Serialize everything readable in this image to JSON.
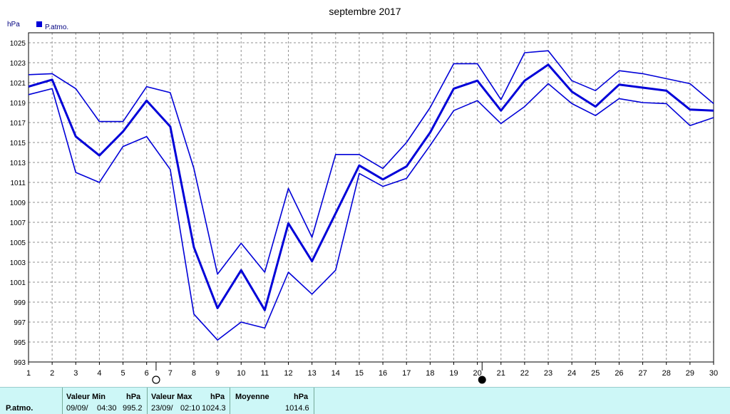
{
  "chart_data": {
    "type": "line",
    "title": "septembre 2017",
    "ylabel": "hPa",
    "legend": "P.atmo.",
    "legend_placement": "top-left",
    "grid": true,
    "ylim": [
      993,
      1026
    ],
    "yticks": [
      993,
      995,
      997,
      999,
      1001,
      1003,
      1005,
      1007,
      1009,
      1011,
      1013,
      1015,
      1017,
      1019,
      1021,
      1023,
      1025
    ],
    "x": [
      1,
      2,
      3,
      4,
      5,
      6,
      7,
      8,
      9,
      10,
      11,
      12,
      13,
      14,
      15,
      16,
      17,
      18,
      19,
      20,
      21,
      22,
      23,
      24,
      25,
      26,
      27,
      28,
      29,
      30
    ],
    "series": [
      {
        "role": "max",
        "values": [
          1021.8,
          1021.9,
          1020.4,
          1017.1,
          1017.1,
          1020.6,
          1020.0,
          1012.4,
          1001.8,
          1004.9,
          1002.0,
          1010.4,
          1005.5,
          1013.8,
          1013.8,
          1012.4,
          1015.0,
          1018.5,
          1022.9,
          1022.9,
          1019.3,
          1024.0,
          1024.2,
          1021.2,
          1020.2,
          1022.2,
          1021.9,
          1021.4,
          1020.9,
          1018.9
        ]
      },
      {
        "role": "mean",
        "values": [
          1020.6,
          1021.3,
          1015.6,
          1013.7,
          1016.1,
          1019.2,
          1016.6,
          1004.5,
          998.4,
          1002.2,
          998.2,
          1006.9,
          1003.1,
          1007.9,
          1012.7,
          1011.3,
          1012.6,
          1016.0,
          1020.4,
          1021.2,
          1018.2,
          1021.2,
          1022.8,
          1020.1,
          1018.6,
          1020.8,
          1020.5,
          1020.2,
          1018.3,
          1018.2
        ]
      },
      {
        "role": "min",
        "values": [
          1019.8,
          1020.4,
          1012.0,
          1011.0,
          1014.6,
          1015.6,
          1012.3,
          997.8,
          995.2,
          997.0,
          996.4,
          1002.0,
          999.8,
          1002.2,
          1011.9,
          1010.6,
          1011.4,
          1014.7,
          1018.2,
          1019.2,
          1016.9,
          1018.6,
          1020.9,
          1018.9,
          1017.7,
          1019.4,
          1019.0,
          1018.9,
          1016.7,
          1017.5
        ]
      }
    ],
    "moon_phases": [
      {
        "day": 6.4,
        "phase": "full-moon-icon"
      },
      {
        "day": 20.2,
        "phase": "new-moon-icon"
      }
    ],
    "colors": {
      "line": "#0000d8",
      "grid": "#909090",
      "axis": "#000000",
      "stats_bg": "#cdf7f7"
    }
  },
  "stats": {
    "row_label": "P.atmo.",
    "min_header": "Valeur Min",
    "min_unit": "hPa",
    "min_date": "09/09/",
    "min_time": "04:30",
    "min_value": "995.2",
    "max_header": "Valeur Max",
    "max_unit": "hPa",
    "max_date": "23/09/",
    "max_time": "02:10",
    "max_value": "1024.3",
    "mean_header": "Moyenne",
    "mean_unit": "hPa",
    "mean_value": "1014.6"
  }
}
